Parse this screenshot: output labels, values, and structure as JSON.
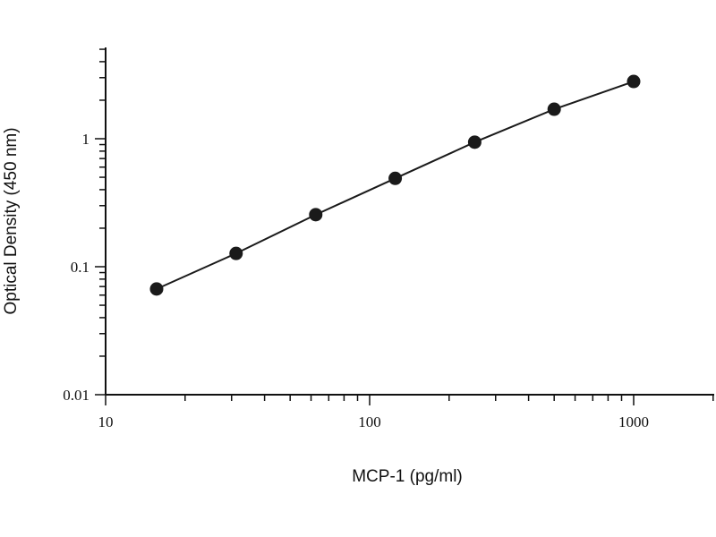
{
  "chart_data": {
    "type": "scatter",
    "xlabel": "MCP-1 (pg/ml)",
    "ylabel": "Optical Density (450 nm)",
    "xscale": "log",
    "yscale": "log",
    "xlim": [
      10,
      2000
    ],
    "ylim": [
      0.01,
      5
    ],
    "x_ticks": [
      10,
      100,
      1000
    ],
    "x_tick_labels": [
      "10",
      "100",
      "1000"
    ],
    "y_ticks": [
      0.01,
      0.1,
      1
    ],
    "y_tick_labels": [
      "0.01",
      "0.1",
      "1"
    ],
    "grid": false,
    "legend": "none",
    "series": [
      {
        "x": [
          15.6,
          31.2,
          62.5,
          125,
          250,
          500,
          1000
        ],
        "y": [
          0.067,
          0.127,
          0.255,
          0.49,
          0.94,
          1.7,
          2.8
        ],
        "line": true,
        "marker": "filled-circle",
        "color": "#1a1a1a"
      }
    ]
  }
}
